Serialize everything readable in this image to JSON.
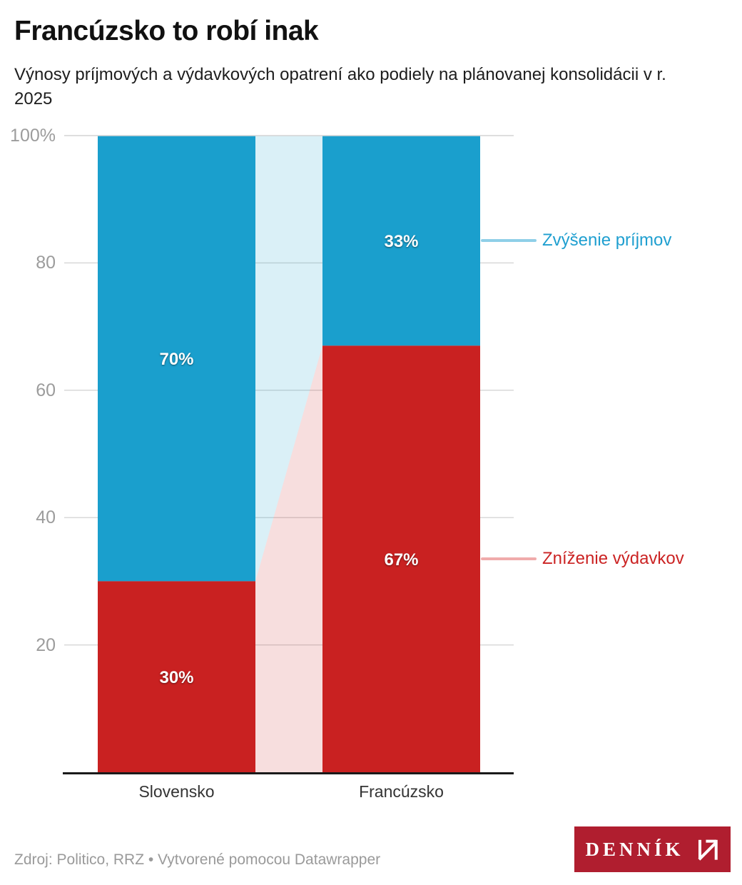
{
  "title": "Francúzsko to robí inak",
  "subtitle": "Výnosy príjmových a výdavkových opatrení ako podiely na plánovanej konsolidácii v r. 2025",
  "footer": "Zdroj: Politico, RRZ • Vytvorené pomocou Datawrapper",
  "logo": {
    "text": "DENNÍK",
    "bg_color": "#B01E2F"
  },
  "chart_data": {
    "type": "bar",
    "variant": "stacked-100-percent-columns-with-connecting-ribbons",
    "categories": [
      "Slovensko",
      "Francúzsko"
    ],
    "series": [
      {
        "name": "Zvýšenie príjmov",
        "values": [
          70,
          33
        ],
        "color": "#1A9FCD",
        "ribbon_rgba": "rgba(26,159,205,0.16)",
        "label_color": "#1F9FD0",
        "connector": "#8FCFE8"
      },
      {
        "name": "Zníženie výdavkov",
        "values": [
          30,
          67
        ],
        "color": "#C92121",
        "ribbon_rgba": "rgba(201,33,33,0.15)",
        "label_color": "#CB2323",
        "connector": "#F0ABAB"
      }
    ],
    "value_suffix": "%",
    "yticks": [
      {
        "value": 100,
        "label": "100%"
      },
      {
        "value": 80,
        "label": "80"
      },
      {
        "value": 60,
        "label": "60"
      },
      {
        "value": 40,
        "label": "40"
      },
      {
        "value": 20,
        "label": "20"
      }
    ],
    "ylim": [
      0,
      100
    ],
    "grid": true,
    "legend_position": "right-annotations",
    "colors": {
      "grid": "#D9D9D9",
      "axis_text": "#9C9C9C",
      "baseline": "#1A1A1A"
    }
  }
}
